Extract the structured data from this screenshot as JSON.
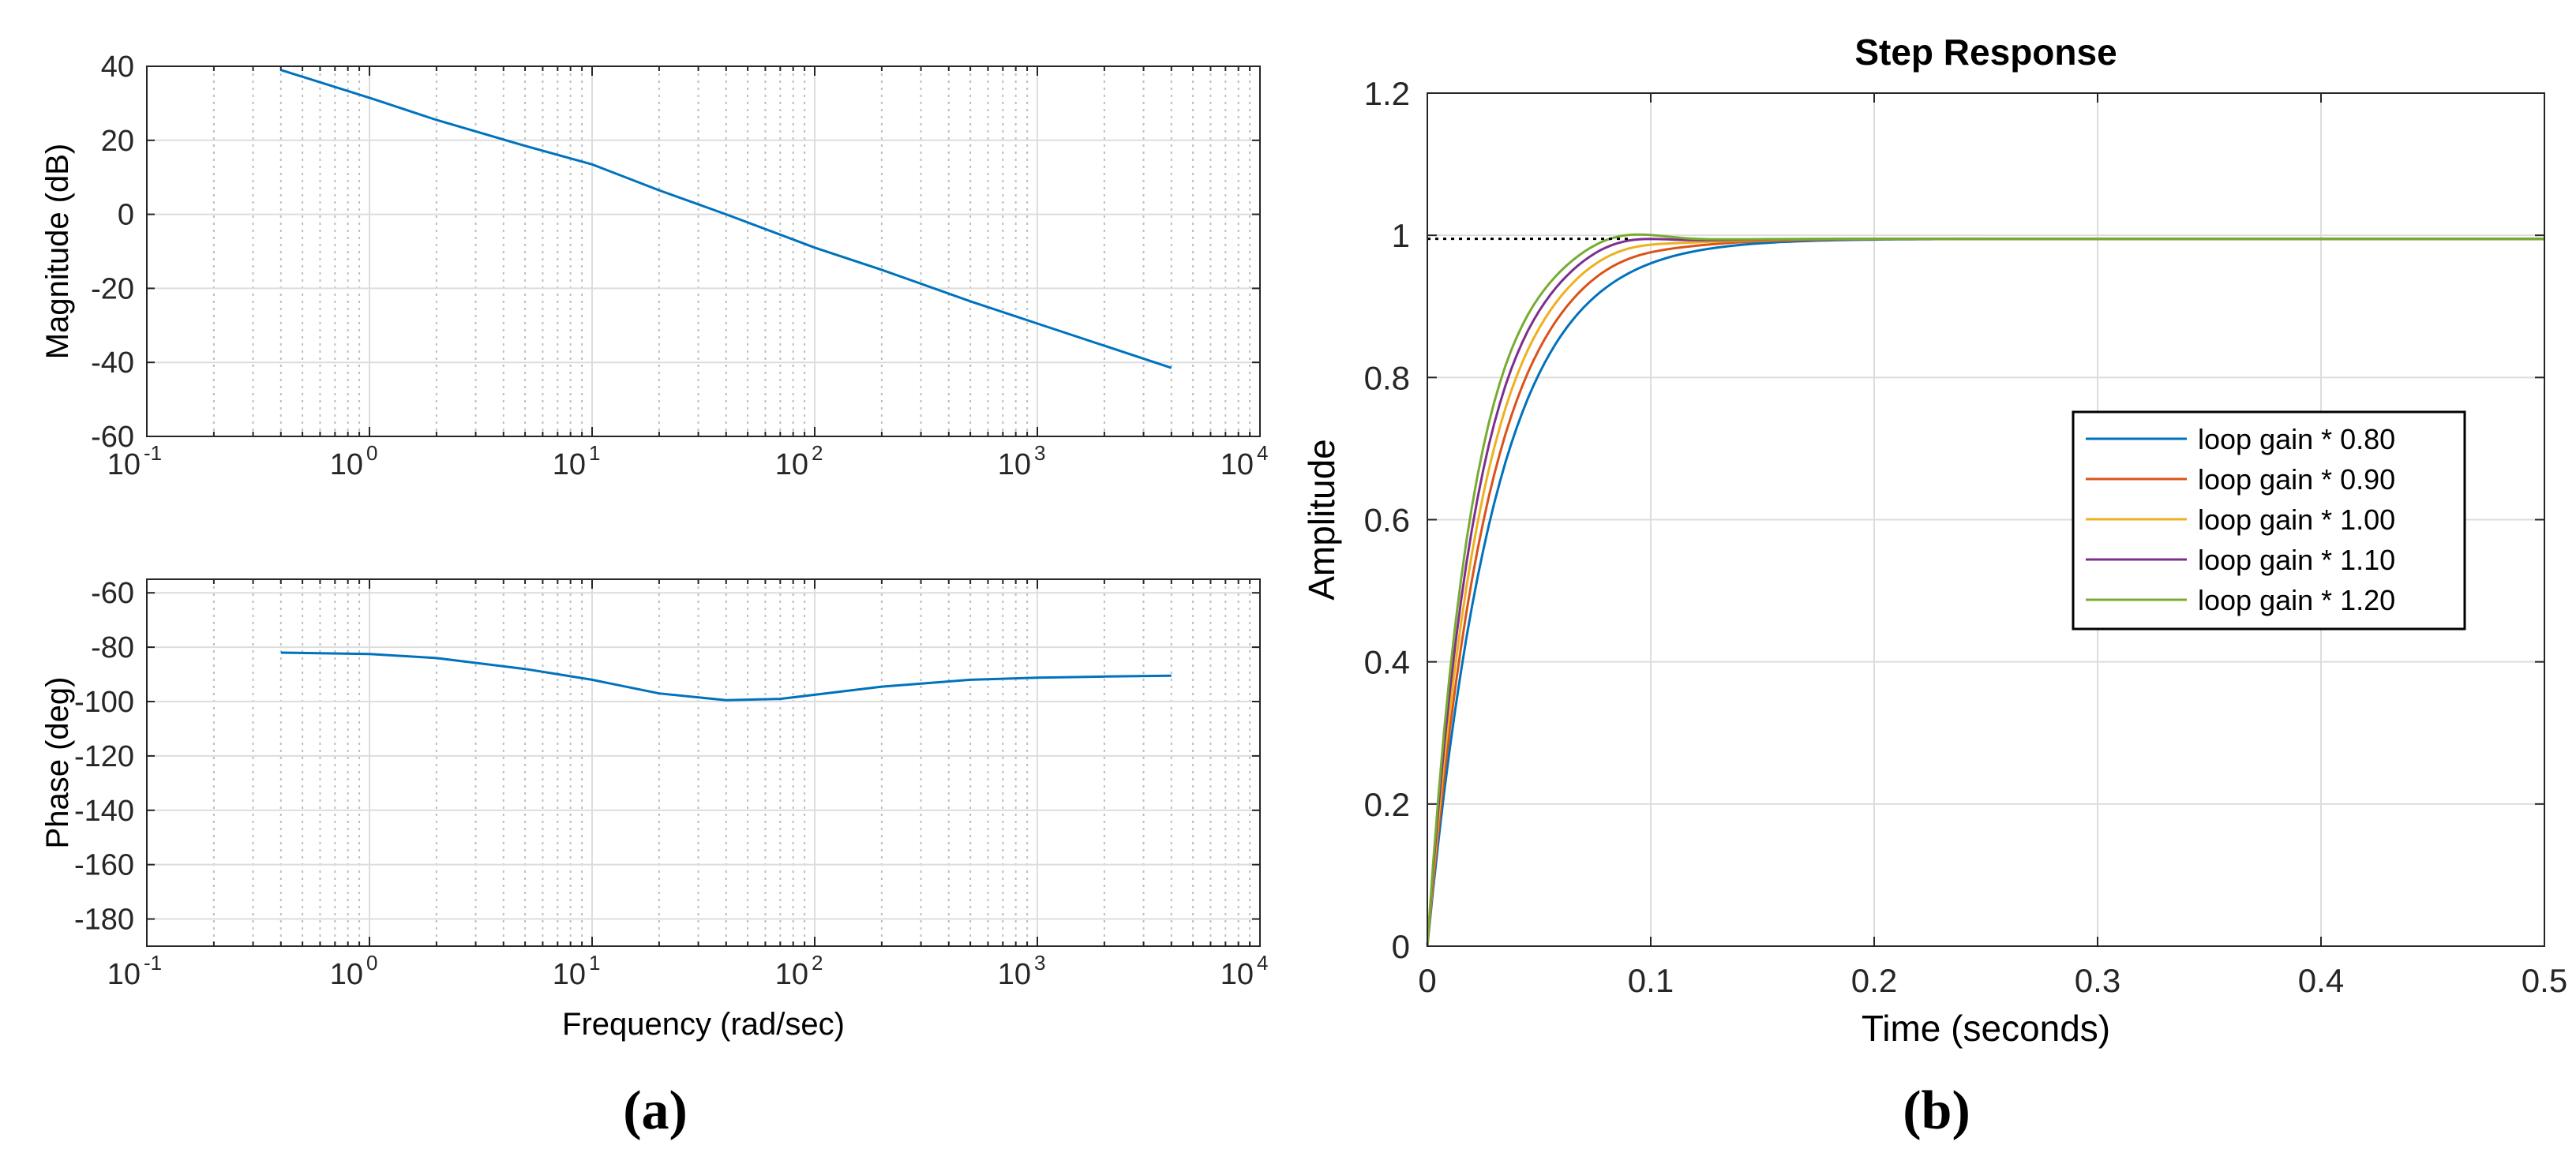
{
  "chart_data": [
    {
      "id": "bode-magnitude",
      "type": "line",
      "xscale": "log",
      "xlim": [
        0.1,
        10000
      ],
      "ylim": [
        -60,
        40
      ],
      "yticks": [
        -60,
        -40,
        -20,
        0,
        20,
        40
      ],
      "xtick_bases": [
        "10",
        "10",
        "10",
        "10",
        "10",
        "10"
      ],
      "xtick_exps": [
        "-1",
        "0",
        "1",
        "2",
        "3",
        "4"
      ],
      "xlabel": "",
      "ylabel": "Magnitude (dB)",
      "grid": true,
      "color": "#0072BD",
      "series": [
        {
          "name": "magnitude",
          "x": [
            0.4,
            1,
            2,
            5,
            10,
            20,
            40,
            100,
            200,
            500,
            1000,
            2000,
            4000
          ],
          "y": [
            39,
            31.5,
            25.5,
            18.5,
            13.5,
            6.5,
            0,
            -9,
            -15,
            -23.5,
            -29.5,
            -35.5,
            -41.5
          ]
        }
      ]
    },
    {
      "id": "bode-phase",
      "type": "line",
      "xscale": "log",
      "xlim": [
        0.1,
        10000
      ],
      "ylim": [
        -190,
        -55
      ],
      "yticks": [
        -180,
        -160,
        -140,
        -120,
        -100,
        -80,
        -60
      ],
      "xtick_bases": [
        "10",
        "10",
        "10",
        "10",
        "10",
        "10"
      ],
      "xtick_exps": [
        "-1",
        "0",
        "1",
        "2",
        "3",
        "4"
      ],
      "xlabel": "Frequency (rad/sec)",
      "ylabel": "Phase (deg)",
      "grid": true,
      "color": "#0072BD",
      "series": [
        {
          "name": "phase",
          "x": [
            0.4,
            1,
            2,
            5,
            10,
            20,
            40,
            70,
            100,
            200,
            500,
            1000,
            2000,
            4000
          ],
          "y": [
            -82,
            -82.5,
            -84,
            -88,
            -92,
            -97,
            -99.5,
            -99,
            -97.5,
            -94.5,
            -92,
            -91.2,
            -90.8,
            -90.5
          ]
        }
      ]
    },
    {
      "id": "step-response",
      "type": "line",
      "title": "Step Response",
      "xlabel": "Time (seconds)",
      "ylabel": "Amplitude",
      "xlim": [
        0,
        0.5
      ],
      "ylim": [
        0,
        1.2
      ],
      "xticks": [
        "0",
        "0.1",
        "0.2",
        "0.3",
        "0.4",
        "0.5"
      ],
      "yticks": [
        "0",
        "0.2",
        "0.4",
        "0.6",
        "0.8",
        "1",
        "1.2"
      ],
      "grid": true,
      "reference_line": 0.995,
      "legend_position": "right-middle",
      "series": [
        {
          "name": "loop gain * 0.80",
          "color": "#0072BD",
          "tau": 0.0262,
          "overshoot": 0.0
        },
        {
          "name": "loop gain * 0.90",
          "color": "#D95319",
          "tau": 0.0235,
          "overshoot": 0.006
        },
        {
          "name": "loop gain * 1.00",
          "color": "#EDB120",
          "tau": 0.0212,
          "overshoot": 0.01
        },
        {
          "name": "loop gain * 1.10",
          "color": "#7E2F8E",
          "tau": 0.0193,
          "overshoot": 0.014
        },
        {
          "name": "loop gain * 1.20",
          "color": "#77AC30",
          "tau": 0.0177,
          "overshoot": 0.017
        }
      ]
    }
  ],
  "captions": [
    "(a)",
    "(b)"
  ]
}
